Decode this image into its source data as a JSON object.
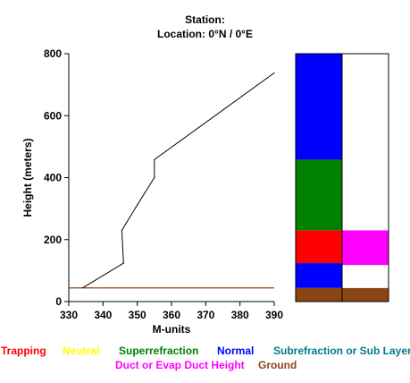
{
  "title_line1": "Station:",
  "title_line2": "Location:   0°N /   0°E",
  "chart_data": {
    "type": "line",
    "xlabel": "M-units",
    "ylabel": "Height (meters)",
    "xlim": [
      330,
      390
    ],
    "ylim": [
      0,
      800
    ],
    "x_ticks": [
      "330",
      "340",
      "350",
      "360",
      "370",
      "380",
      "390"
    ],
    "y_ticks": [
      "0",
      "200",
      "400",
      "600",
      "800"
    ],
    "series": [
      {
        "color": "#000000",
        "points": [
          [
            334,
            44
          ],
          [
            346,
            124
          ],
          [
            345.5,
            230
          ],
          [
            350,
            312
          ],
          [
            355,
            400
          ],
          [
            355,
            458
          ],
          [
            390,
            738
          ]
        ]
      }
    ],
    "ground_line": {
      "y": 44,
      "color": "#8b4513"
    },
    "classification_bars": [
      {
        "column": "left",
        "segments": [
          {
            "from": 0,
            "to": 44,
            "color": "#8b4513"
          },
          {
            "from": 44,
            "to": 124,
            "color": "#0000ff"
          },
          {
            "from": 124,
            "to": 230,
            "color": "#ff0000"
          },
          {
            "from": 230,
            "to": 458,
            "color": "#008000"
          },
          {
            "from": 458,
            "to": 800,
            "color": "#0000ff"
          }
        ]
      },
      {
        "column": "right",
        "segments": [
          {
            "from": 0,
            "to": 44,
            "color": "#8b4513"
          },
          {
            "from": 44,
            "to": 118,
            "color": "#ffffff"
          },
          {
            "from": 118,
            "to": 230,
            "color": "#ff00ff"
          },
          {
            "from": 230,
            "to": 800,
            "color": "#ffffff"
          }
        ]
      }
    ]
  },
  "legend": [
    {
      "label": "Trapping",
      "color": "#ff0000"
    },
    {
      "label": "Neutral",
      "color": "#ffff00"
    },
    {
      "label": "Superrefraction",
      "color": "#008000"
    },
    {
      "label": "Normal",
      "color": "#0000ff"
    },
    {
      "label": "Subrefraction or Sub Layer",
      "color": "#007b8a"
    },
    {
      "label": "Duct or Evap Duct Height",
      "color": "#ff00ff"
    },
    {
      "label": "Ground",
      "color": "#8b4513"
    }
  ]
}
